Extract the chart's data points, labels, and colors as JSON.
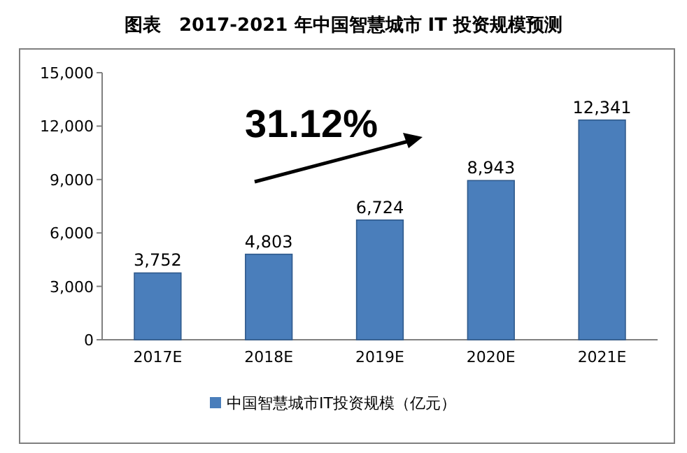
{
  "chart_data": {
    "type": "bar",
    "title": "图表　2017-2021 年中国智慧城市 IT 投资规模预测",
    "categories": [
      "2017E",
      "2018E",
      "2019E",
      "2020E",
      "2021E"
    ],
    "series": [
      {
        "name": "中国智慧城市IT投资规模（亿元）",
        "color": "#4a7ebb",
        "values": [
          3752,
          4803,
          6724,
          8943,
          12341
        ],
        "value_labels": [
          "3,752",
          "4,803",
          "6,724",
          "8,943",
          "12,341"
        ]
      }
    ],
    "ylim": [
      0,
      15000
    ],
    "yticks": [
      0,
      {
        "value": 3000,
        "label": "3,000"
      },
      {
        "value": 6000,
        "label": "6,000"
      },
      {
        "value": 9000,
        "label": "9,000"
      },
      {
        "value": 12000,
        "label": "12,000"
      },
      {
        "value": 15000,
        "label": "15,000"
      }
    ],
    "annotations": [
      "31.12%"
    ],
    "legend": "bottom"
  }
}
